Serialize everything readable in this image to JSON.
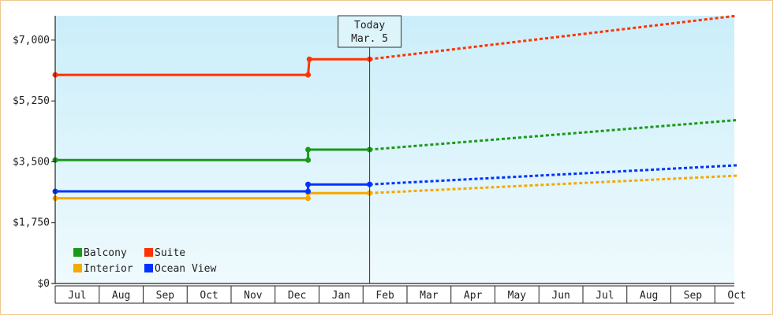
{
  "chart_data": {
    "type": "line",
    "title": "",
    "xlabel": "",
    "ylabel": "",
    "ylim": [
      0,
      7700
    ],
    "yticks": [
      {
        "value": 0,
        "label": "$0"
      },
      {
        "value": 1750,
        "label": "$1,750"
      },
      {
        "value": 3500,
        "label": "$3,500"
      },
      {
        "value": 5250,
        "label": "$5,250"
      },
      {
        "value": 7000,
        "label": "$7,000"
      }
    ],
    "months": [
      "Jul",
      "Aug",
      "Sep",
      "Oct",
      "Nov",
      "Dec",
      "Jan",
      "Feb",
      "Mar",
      "Apr",
      "May",
      "Jun",
      "Jul",
      "Aug",
      "Sep",
      "Oct"
    ],
    "today": {
      "line1": "Today",
      "line2": "Mar. 5",
      "month_pos": 7.15
    },
    "grid": false,
    "legend_position": "bottom-left",
    "series": [
      {
        "name": "Balcony",
        "color": "#1a9a1a",
        "actual": [
          [
            0,
            3550
          ],
          [
            5.75,
            3550
          ],
          [
            5.75,
            3850
          ],
          [
            7.15,
            3850
          ]
        ],
        "projected": [
          [
            7.15,
            3850
          ],
          [
            15.5,
            4700
          ]
        ]
      },
      {
        "name": "Suite",
        "color": "#ff3300",
        "actual": [
          [
            0,
            6000
          ],
          [
            5.75,
            6000
          ],
          [
            5.78,
            6450
          ],
          [
            7.15,
            6450
          ]
        ],
        "projected": [
          [
            7.15,
            6450
          ],
          [
            15.5,
            7700
          ]
        ]
      },
      {
        "name": "Interior",
        "color": "#f5a800",
        "actual": [
          [
            0,
            2450
          ],
          [
            5.75,
            2450
          ],
          [
            5.75,
            2600
          ],
          [
            7.15,
            2600
          ]
        ],
        "projected": [
          [
            7.15,
            2600
          ],
          [
            15.5,
            3100
          ]
        ]
      },
      {
        "name": "Ocean View",
        "color": "#0033ff",
        "actual": [
          [
            0,
            2650
          ],
          [
            5.75,
            2650
          ],
          [
            5.75,
            2850
          ],
          [
            7.15,
            2850
          ]
        ],
        "projected": [
          [
            7.15,
            2850
          ],
          [
            15.5,
            3400
          ]
        ]
      }
    ]
  }
}
